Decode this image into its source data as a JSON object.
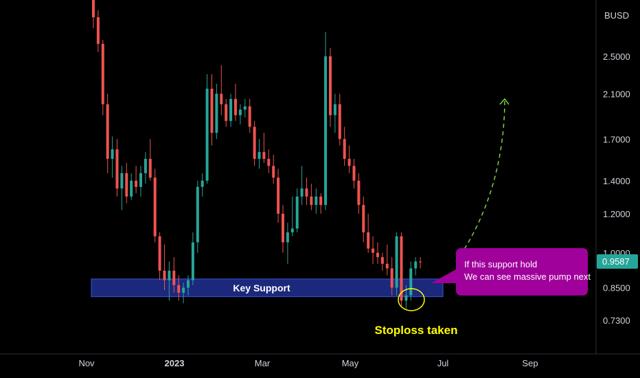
{
  "chart_data": {
    "type": "candlestick",
    "currency": "BUSD",
    "scale": "log",
    "grid": false,
    "ylim": [
      0.66,
      3.3
    ],
    "y_ticks": [
      "2.5000",
      "2.1000",
      "1.7000",
      "1.4000",
      "1.2000",
      "1.0000",
      "0.8500",
      "0.7300"
    ],
    "x_ticks": [
      {
        "label": "Nov",
        "bold": false
      },
      {
        "label": "2023",
        "bold": true
      },
      {
        "label": "Mar",
        "bold": false
      },
      {
        "label": "May",
        "bold": false
      },
      {
        "label": "Jul",
        "bold": false
      },
      {
        "label": "Sep",
        "bold": false
      }
    ],
    "last_price": "0.9587",
    "colors": {
      "up": "#26a69a",
      "down": "#ef5350",
      "price_tag": "#26a69a"
    },
    "candles": [
      [
        3.6,
        3.8,
        2.85,
        3.0
      ],
      [
        3.0,
        3.1,
        2.55,
        2.65
      ],
      [
        2.65,
        2.7,
        1.9,
        2.0
      ],
      [
        2.0,
        2.1,
        1.45,
        1.55
      ],
      [
        1.55,
        1.72,
        1.42,
        1.62
      ],
      [
        1.62,
        1.7,
        1.3,
        1.35
      ],
      [
        1.35,
        1.5,
        1.22,
        1.45
      ],
      [
        1.45,
        1.52,
        1.26,
        1.3
      ],
      [
        1.3,
        1.45,
        1.28,
        1.4
      ],
      [
        1.4,
        1.5,
        1.32,
        1.36
      ],
      [
        1.36,
        1.5,
        1.3,
        1.45
      ],
      [
        1.45,
        1.6,
        1.38,
        1.55
      ],
      [
        1.55,
        1.7,
        1.4,
        1.42
      ],
      [
        1.42,
        1.48,
        1.05,
        1.08
      ],
      [
        1.08,
        1.1,
        0.88,
        0.92
      ],
      [
        0.92,
        1.04,
        0.84,
        0.88
      ],
      [
        0.88,
        0.96,
        0.8,
        0.92
      ],
      [
        0.92,
        0.98,
        0.83,
        0.86
      ],
      [
        0.86,
        0.9,
        0.8,
        0.83
      ],
      [
        0.83,
        0.87,
        0.79,
        0.85
      ],
      [
        0.85,
        0.9,
        0.82,
        0.88
      ],
      [
        0.88,
        1.1,
        0.86,
        1.05
      ],
      [
        1.05,
        1.4,
        1.0,
        1.36
      ],
      [
        1.36,
        1.45,
        1.3,
        1.4
      ],
      [
        1.4,
        2.3,
        1.38,
        2.15
      ],
      [
        2.15,
        2.3,
        1.65,
        1.75
      ],
      [
        1.75,
        2.2,
        1.7,
        2.1
      ],
      [
        2.1,
        2.4,
        1.9,
        2.0
      ],
      [
        2.0,
        2.05,
        1.8,
        1.85
      ],
      [
        1.85,
        2.1,
        1.8,
        2.05
      ],
      [
        2.05,
        2.2,
        1.85,
        1.9
      ],
      [
        1.9,
        2.0,
        1.82,
        1.95
      ],
      [
        1.95,
        2.05,
        1.88,
        1.98
      ],
      [
        1.98,
        2.05,
        1.75,
        1.8
      ],
      [
        1.8,
        1.85,
        1.5,
        1.55
      ],
      [
        1.55,
        1.7,
        1.48,
        1.6
      ],
      [
        1.6,
        1.75,
        1.52,
        1.55
      ],
      [
        1.55,
        1.62,
        1.45,
        1.5
      ],
      [
        1.5,
        1.58,
        1.38,
        1.42
      ],
      [
        1.42,
        1.48,
        1.15,
        1.2
      ],
      [
        1.2,
        1.25,
        1.0,
        1.05
      ],
      [
        1.05,
        1.15,
        0.95,
        1.1
      ],
      [
        1.1,
        1.3,
        1.08,
        1.12
      ],
      [
        1.12,
        1.35,
        1.1,
        1.3
      ],
      [
        1.3,
        1.5,
        1.25,
        1.35
      ],
      [
        1.35,
        1.42,
        1.25,
        1.3
      ],
      [
        1.3,
        1.38,
        1.22,
        1.25
      ],
      [
        1.25,
        1.35,
        1.2,
        1.3
      ],
      [
        1.3,
        1.32,
        1.2,
        1.25
      ],
      [
        1.25,
        2.8,
        1.22,
        2.5
      ],
      [
        2.5,
        2.6,
        1.8,
        1.9
      ],
      [
        1.9,
        2.1,
        1.75,
        2.0
      ],
      [
        2.0,
        2.1,
        1.65,
        1.7
      ],
      [
        1.7,
        1.8,
        1.5,
        1.55
      ],
      [
        1.55,
        1.65,
        1.45,
        1.5
      ],
      [
        1.5,
        1.55,
        1.35,
        1.4
      ],
      [
        1.4,
        1.45,
        1.2,
        1.25
      ],
      [
        1.25,
        1.3,
        1.05,
        1.1
      ],
      [
        1.1,
        1.2,
        1.0,
        1.02
      ],
      [
        1.02,
        1.08,
        0.95,
        1.0
      ],
      [
        1.0,
        1.05,
        0.95,
        0.98
      ],
      [
        0.98,
        1.0,
        0.92,
        0.95
      ],
      [
        0.95,
        1.04,
        0.9,
        0.93
      ],
      [
        0.93,
        0.98,
        0.82,
        0.85
      ],
      [
        0.85,
        1.1,
        0.82,
        1.08
      ],
      [
        1.08,
        1.1,
        0.78,
        0.8
      ],
      [
        0.8,
        0.86,
        0.77,
        0.82
      ],
      [
        0.82,
        0.96,
        0.8,
        0.93
      ],
      [
        0.93,
        0.98,
        0.9,
        0.96
      ],
      [
        0.96,
        0.98,
        0.93,
        0.9587
      ]
    ],
    "zones": [
      {
        "label": "Key Support",
        "y_low": 0.815,
        "y_high": 0.885
      }
    ],
    "annotations": [
      {
        "type": "text",
        "text": "Stoploss taken",
        "color": "#ffff00"
      },
      {
        "type": "callout",
        "lines": [
          "If this support hold",
          "We can see massive pump next"
        ],
        "background": "#a0019b"
      },
      {
        "type": "projection_arrow",
        "from_y": 0.96,
        "to_y": 2.05,
        "color": "#7fd04b"
      }
    ]
  }
}
